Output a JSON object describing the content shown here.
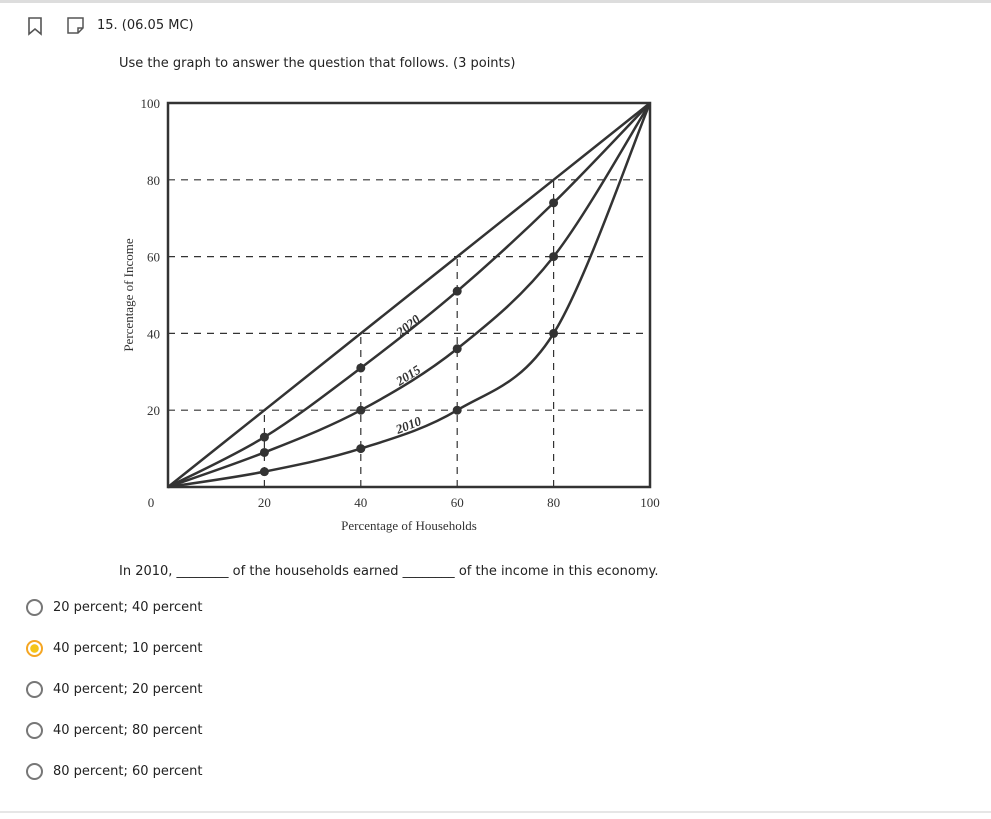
{
  "question": {
    "number": "15. (06.05 MC)",
    "instruction": "Use the graph to answer the question that follows. (3 points)",
    "prompt": "In 2010, ________ of the households earned ________ of the income in this economy.",
    "options": [
      "20 percent; 40 percent",
      "40 percent; 10 percent",
      "40 percent; 20 percent",
      "40 percent; 80 percent",
      "80 percent; 60 percent"
    ],
    "selected": 1
  },
  "chart_data": {
    "type": "line",
    "x_label": "Percentage of Households",
    "y_label": "Percentage of Income",
    "x": [
      0,
      20,
      40,
      60,
      80,
      100
    ],
    "xlim": [
      0,
      100
    ],
    "ylim": [
      0,
      100
    ],
    "xticks": [
      0,
      20,
      40,
      60,
      80,
      100
    ],
    "yticks": [
      20,
      40,
      60,
      80,
      100
    ],
    "grid": true,
    "series": [
      {
        "color": "#333333",
        "values": [
          0,
          20,
          40,
          60,
          80,
          100
        ],
        "markers": false
      },
      {
        "name": "2020",
        "color": "#333333",
        "values": [
          0,
          13,
          31,
          51,
          74,
          100
        ],
        "markers": true
      },
      {
        "name": "2015",
        "color": "#333333",
        "values": [
          0,
          9,
          20,
          36,
          60,
          100
        ],
        "markers": true
      },
      {
        "name": "2010",
        "color": "#333333",
        "values": [
          0,
          4,
          10,
          20,
          40,
          100
        ],
        "markers": true
      }
    ]
  }
}
